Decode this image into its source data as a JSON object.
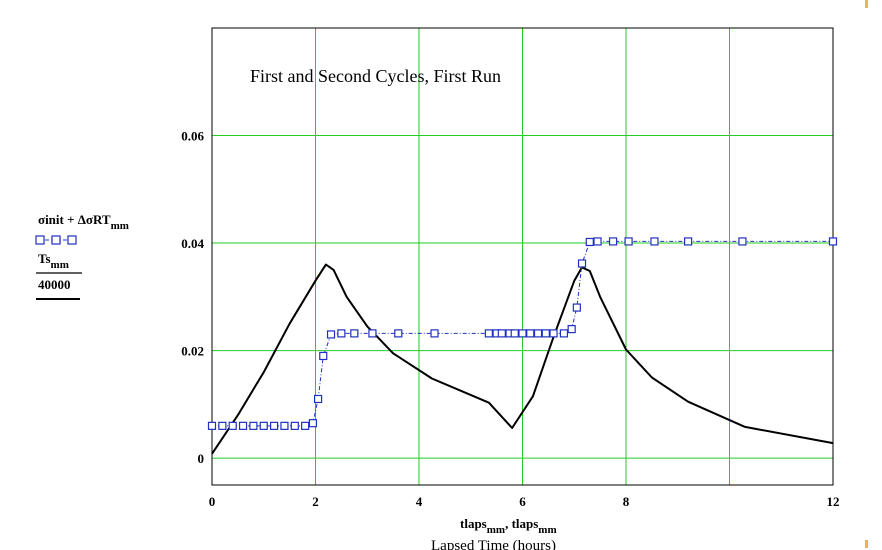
{
  "chart_data": {
    "type": "line",
    "title": "First and Second Cycles, First Run",
    "xlabel": "Lapsed Time (hours)",
    "xlabel_vars": [
      "tlaps",
      "mm",
      ", tlaps",
      "mm"
    ],
    "xlim": [
      0,
      12
    ],
    "ylim": [
      -0.005,
      0.08
    ],
    "xticks": [
      0,
      2,
      4,
      6,
      8,
      12
    ],
    "xtick_labels": [
      "0",
      "2",
      "4",
      "6",
      "8",
      "12"
    ],
    "xgrid": [
      0,
      2,
      4,
      6,
      8,
      10,
      12
    ],
    "yticks": [
      0,
      0.02,
      0.04,
      0.06
    ],
    "ytick_labels": [
      "0",
      "0.02",
      "0.04",
      "0.06"
    ],
    "ygrid": [
      0,
      0.02,
      0.04,
      0.06
    ],
    "grid": true,
    "grid_color": "#22cc22",
    "legend_placement": "left",
    "legend": {
      "series1_main": "σinit + ΔσRT",
      "series1_sub": "mm",
      "series2_num_main": "Ts",
      "series2_num_sub": "mm",
      "series2_den": "40000"
    },
    "series": [
      {
        "color": "#2030c0",
        "style": "dash-dot with square markers",
        "x": [
          0,
          0.2,
          0.4,
          0.6,
          0.8,
          1.0,
          1.2,
          1.4,
          1.6,
          1.8,
          1.95,
          2.05,
          2.15,
          2.3,
          2.5,
          2.75,
          3.1,
          3.6,
          4.3,
          5.35,
          5.5,
          5.6,
          5.75,
          5.85,
          6.0,
          6.15,
          6.3,
          6.45,
          6.6,
          6.8,
          6.95,
          7.05,
          7.15,
          7.3,
          7.45,
          7.75,
          8.05,
          8.55,
          9.2,
          10.25,
          12
        ],
        "y": [
          0.006,
          0.006,
          0.006,
          0.006,
          0.006,
          0.006,
          0.006,
          0.006,
          0.006,
          0.006,
          0.0065,
          0.011,
          0.019,
          0.023,
          0.0232,
          0.0232,
          0.0232,
          0.0232,
          0.0232,
          0.0232,
          0.0232,
          0.0232,
          0.0232,
          0.0232,
          0.0232,
          0.0232,
          0.0232,
          0.0232,
          0.0232,
          0.0232,
          0.024,
          0.028,
          0.0362,
          0.0402,
          0.0403,
          0.0403,
          0.0403,
          0.0403,
          0.0403,
          0.0403,
          0.0403
        ]
      },
      {
        "color": "#000000",
        "style": "solid",
        "x": [
          0,
          0.5,
          1.0,
          1.5,
          2.0,
          2.2,
          2.35,
          2.6,
          3.0,
          3.5,
          4.25,
          5.35,
          5.8,
          6.2,
          6.6,
          7.0,
          7.15,
          7.3,
          7.5,
          8.0,
          8.5,
          9.2,
          10.3,
          12
        ],
        "y": [
          0.0008,
          0.008,
          0.016,
          0.025,
          0.033,
          0.036,
          0.035,
          0.03,
          0.0245,
          0.0195,
          0.0148,
          0.0103,
          0.0056,
          0.0115,
          0.0225,
          0.033,
          0.0355,
          0.0348,
          0.03,
          0.0202,
          0.015,
          0.0105,
          0.0058,
          0.0028
        ]
      }
    ]
  }
}
